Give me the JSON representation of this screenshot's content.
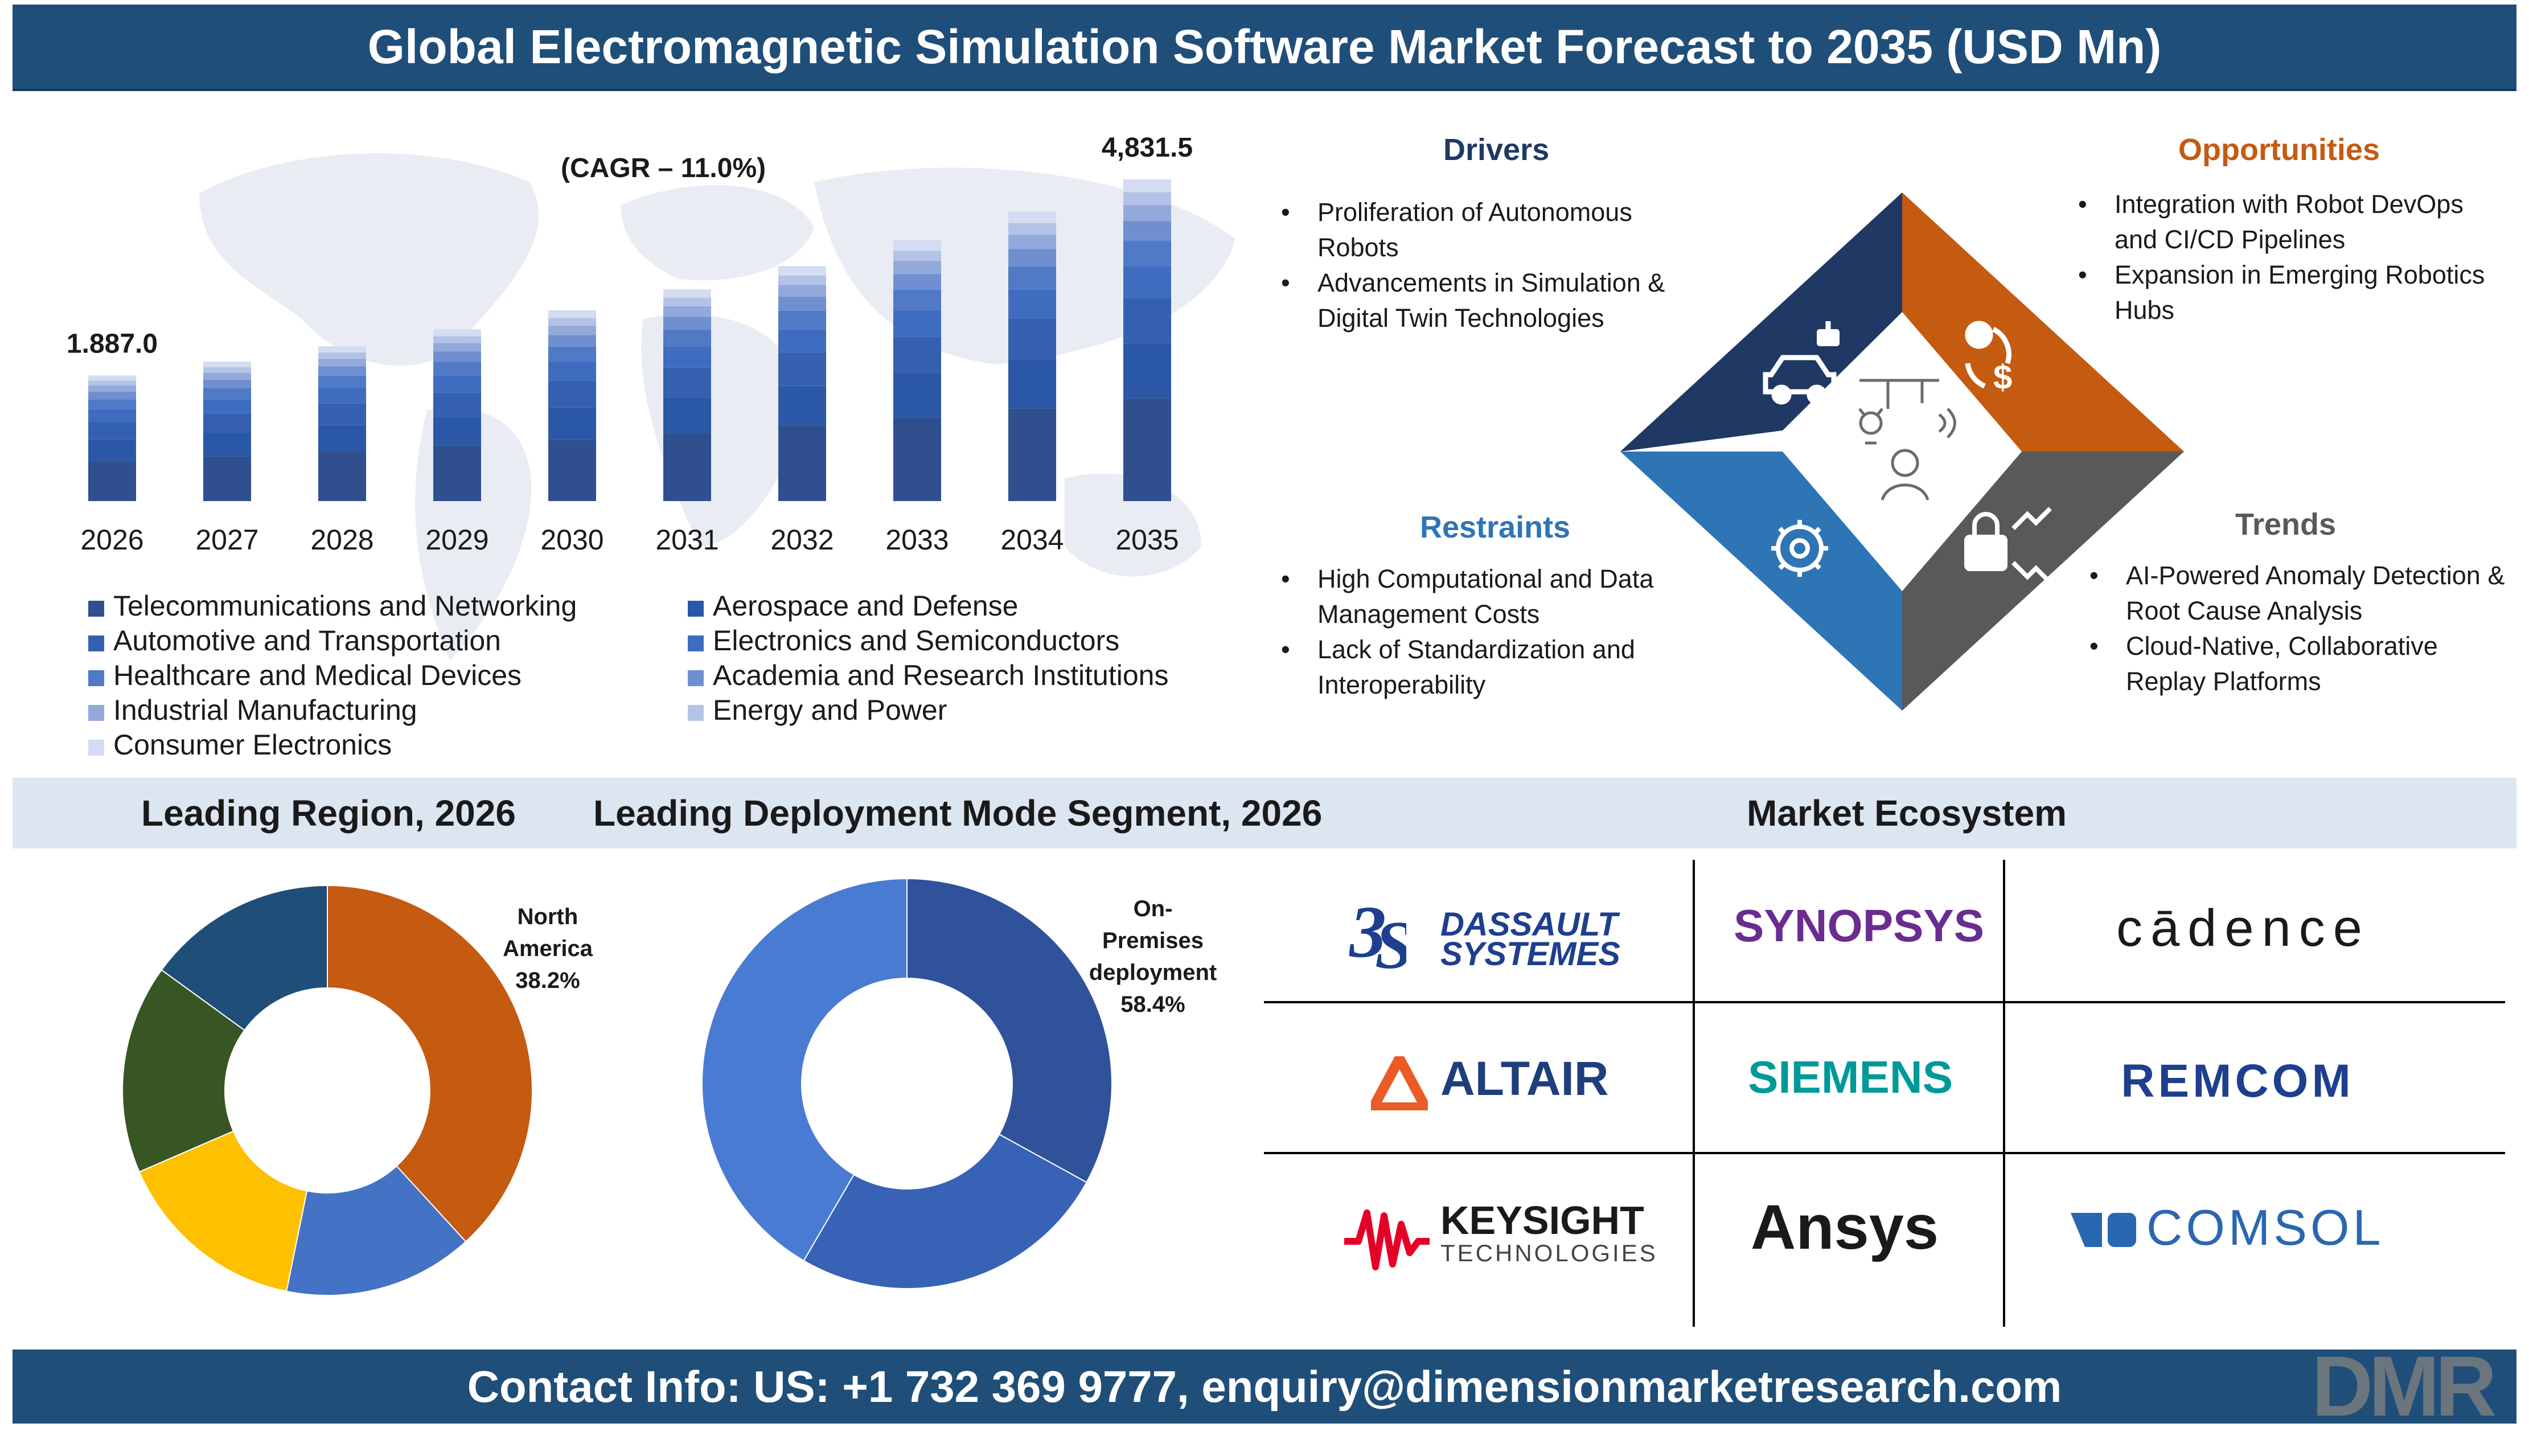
{
  "title": "Global Electromagnetic Simulation Software Market Forecast to 2035 (USD Mn)",
  "contact": "Contact Info: US: +1 732 369 9777, enquiry@dimensionmarketresearch.com",
  "brand_mark": "DMR",
  "chart_data": [
    {
      "type": "bar",
      "stacked": true,
      "cagr_label": "(CAGR – 11.0%)",
      "categories": [
        "2026",
        "2027",
        "2028",
        "2029",
        "2030",
        "2031",
        "2032",
        "2033",
        "2034",
        "2035"
      ],
      "totals": [
        1887.0,
        2094.6,
        2325.0,
        2580.7,
        2864.6,
        3179.7,
        3529.4,
        3917.7,
        4348.6,
        4831.5
      ],
      "first_label": "1.887.0",
      "last_label": "4,831.5",
      "series_shares": [
        0.32,
        0.17,
        0.14,
        0.1,
        0.08,
        0.06,
        0.05,
        0.04,
        0.04
      ],
      "series": [
        {
          "name": "Telecommunications and Networking",
          "color": "#2f4f8f"
        },
        {
          "name": "Aerospace and Defense",
          "color": "#2b58a6"
        },
        {
          "name": "Automotive and Transportation",
          "color": "#3560b0"
        },
        {
          "name": "Electronics and Semiconductors",
          "color": "#3e6cbf"
        },
        {
          "name": "Healthcare and Medical Devices",
          "color": "#5079c6"
        },
        {
          "name": "Academia and Research Institutions",
          "color": "#6f8fd0"
        },
        {
          "name": "Industrial Manufacturing",
          "color": "#93a9db"
        },
        {
          "name": "Energy and Power",
          "color": "#b3c2e6"
        },
        {
          "name": "Consumer Electronics",
          "color": "#d3dcf0"
        }
      ]
    },
    {
      "type": "pie",
      "title": "Leading Region, 2026",
      "label": [
        "North",
        "America",
        "38.2%"
      ],
      "slices": [
        {
          "value": 38.2,
          "color": "#c55a11"
        },
        {
          "value": 15.0,
          "color": "#4472c4"
        },
        {
          "value": 15.3,
          "color": "#ffc000"
        },
        {
          "value": 16.5,
          "color": "#375623"
        },
        {
          "value": 15.0,
          "color": "#1f4e79"
        }
      ]
    },
    {
      "type": "pie",
      "title": "Leading Deployment Mode  Segment, 2026",
      "label": [
        "On-",
        "Premises",
        "deployment",
        "58.4%"
      ],
      "slices": [
        {
          "value": 33.0,
          "color": "#2f529b"
        },
        {
          "value": 25.4,
          "color": "#3762b5"
        },
        {
          "value": 41.6,
          "color": "#4a7bd3"
        }
      ]
    }
  ],
  "quadrants": {
    "drivers": {
      "title": "Drivers",
      "color": "#1f3864",
      "items": [
        "Proliferation of Autonomous Robots",
        "Advancements in Simulation & Digital Twin Technologies"
      ]
    },
    "opportunities": {
      "title": "Opportunities",
      "color": "#c55a11",
      "items": [
        "Integration with Robot DevOps and CI/CD Pipelines",
        "Expansion in Emerging Robotics Hubs"
      ]
    },
    "restraints": {
      "title": "Restraints",
      "color": "#2e75b6",
      "items": [
        "High Computational and Data Management Costs",
        "Lack of Standardization and Interoperability"
      ]
    },
    "trends": {
      "title": "Trends",
      "color": "#595959",
      "items": [
        "AI-Powered Anomaly Detection & Root Cause Analysis",
        "Cloud-Native, Collaborative Replay Platforms"
      ]
    }
  },
  "ecosystem": {
    "title": "Market Ecosystem",
    "logos": [
      {
        "top": "DASSAULT",
        "bottom": "SYSTEMES",
        "color": "#1e3f8f"
      },
      {
        "text": "SYNOPSYS",
        "color": "#6a2c8f"
      },
      {
        "text": "cādence",
        "color": "#1a1a1a"
      },
      {
        "text": "ALTAIR",
        "color": "#1f3e7c"
      },
      {
        "text": "SIEMENS",
        "color": "#009999"
      },
      {
        "text": "REMCOM",
        "color": "#1e3f8f"
      },
      {
        "top": "KEYSIGHT",
        "bottom": "TECHNOLOGIES",
        "color": "#1a1a1a"
      },
      {
        "text": "Ansys",
        "color": "#1a1a1a"
      },
      {
        "text": "COMSOL",
        "color": "#2a67b1"
      }
    ]
  }
}
